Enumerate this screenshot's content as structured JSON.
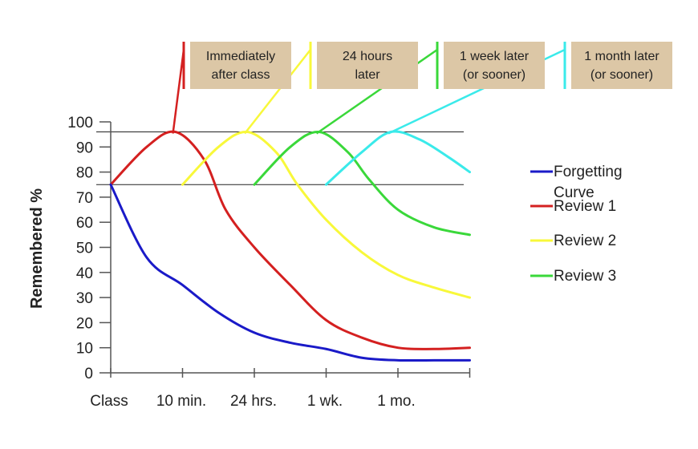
{
  "chart_data": {
    "type": "line",
    "ylabel": "Remembered %",
    "xlabel": "",
    "categories": [
      "Class",
      "10 min.",
      "24 hrs.",
      "1 wk.",
      "1 mo."
    ],
    "ylim": [
      0,
      100
    ],
    "yticks": [
      0,
      10,
      20,
      30,
      40,
      50,
      60,
      70,
      80,
      90,
      100
    ],
    "grid": false,
    "legend_position": "right",
    "reference_lines": [
      96,
      75
    ],
    "series": [
      {
        "name": "Forgetting Curve",
        "color": "#1a1ac8",
        "points": [
          [
            0,
            75
          ],
          [
            0.5,
            46
          ],
          [
            1,
            35
          ],
          [
            1.5,
            24
          ],
          [
            2,
            16
          ],
          [
            2.5,
            12
          ],
          [
            3,
            9.5
          ],
          [
            3.5,
            6
          ],
          [
            4,
            5
          ],
          [
            4.5,
            5
          ],
          [
            5,
            5
          ]
        ]
      },
      {
        "name": "Review 1",
        "color": "#d42020",
        "points": [
          [
            0,
            75
          ],
          [
            0.5,
            90
          ],
          [
            0.9,
            96
          ],
          [
            1.3,
            85
          ],
          [
            1.6,
            65
          ],
          [
            2,
            50
          ],
          [
            2.5,
            35
          ],
          [
            3,
            21
          ],
          [
            3.5,
            14
          ],
          [
            4,
            10
          ],
          [
            4.5,
            9.5
          ],
          [
            5,
            10
          ]
        ]
      },
      {
        "name": "Review 2",
        "color": "#f8f83a",
        "points": [
          [
            1,
            75
          ],
          [
            1.5,
            90
          ],
          [
            1.9,
            96
          ],
          [
            2.3,
            88
          ],
          [
            2.6,
            75
          ],
          [
            3,
            61
          ],
          [
            3.5,
            48
          ],
          [
            4,
            39
          ],
          [
            4.5,
            34
          ],
          [
            5,
            30
          ]
        ]
      },
      {
        "name": "Review 3",
        "color": "#3ad83a",
        "points": [
          [
            2,
            75
          ],
          [
            2.5,
            90
          ],
          [
            2.9,
            96
          ],
          [
            3.3,
            88
          ],
          [
            3.6,
            77
          ],
          [
            4,
            65
          ],
          [
            4.5,
            58
          ],
          [
            5,
            55
          ]
        ]
      },
      {
        "name": "",
        "color": "#3aeaea",
        "points": [
          [
            3,
            75
          ],
          [
            3.5,
            88
          ],
          [
            3.9,
            96
          ],
          [
            4.3,
            93
          ],
          [
            4.7,
            86
          ],
          [
            5,
            80
          ]
        ]
      }
    ],
    "annotations": [
      {
        "line1": "Immediately",
        "line2": "after class",
        "color": "#d42020"
      },
      {
        "line1": "24 hours",
        "line2": "later",
        "color": "#f8f83a"
      },
      {
        "line1": "1 week later",
        "line2": "(or sooner)",
        "color": "#3ad83a"
      },
      {
        "line1": "1 month later",
        "line2": "(or sooner)",
        "color": "#3aeaea"
      }
    ],
    "annotation_box_color": "#dcc7a6"
  }
}
